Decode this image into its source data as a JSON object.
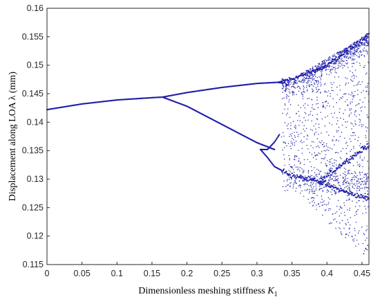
{
  "chart_data": {
    "type": "scatter",
    "title": "",
    "xlabel": "Dimensionless meshing stiffness",
    "xlabel_symbol": "K",
    "xlabel_subscript": "1",
    "ylabel": "Displacement along LOA λ (mm)",
    "xlim": [
      0,
      0.46
    ],
    "ylim": [
      0.115,
      0.16
    ],
    "x_ticks": [
      "0",
      "0.05",
      "0.1",
      "0.15",
      "0.2",
      "0.25",
      "0.3",
      "0.35",
      "0.4",
      "0.45"
    ],
    "y_ticks": [
      "0.115",
      "0.12",
      "0.125",
      "0.13",
      "0.135",
      "0.14",
      "0.145",
      "0.15",
      "0.155",
      "0.16"
    ],
    "grid": false,
    "legend": "none",
    "marker_color": "#1f1fa8",
    "series": [
      {
        "branches": [
          {
            "x": [
              0,
              0.05,
              0.1,
              0.15,
              0.165
            ],
            "y": [
              0.1422,
              0.1432,
              0.1439,
              0.1443,
              0.1444
            ]
          },
          {
            "x": [
              0.165,
              0.2,
              0.25,
              0.3,
              0.33
            ],
            "y": [
              0.1444,
              0.1452,
              0.1461,
              0.1468,
              0.147
            ]
          },
          {
            "x": [
              0.165,
              0.2,
              0.25,
              0.3,
              0.325
            ],
            "y": [
              0.1444,
              0.1428,
              0.1396,
              0.1364,
              0.1352
            ]
          },
          {
            "x": [
              0.33,
              0.35,
              0.4,
              0.46
            ],
            "y": [
              0.147,
              0.1476,
              0.1498,
              0.1555
            ]
          },
          {
            "x": [
              0.33,
              0.345
            ],
            "y": [
              0.147,
              0.1467
            ]
          },
          {
            "x": [
              0.305,
              0.315,
              0.325,
              0.332
            ],
            "y": [
              0.1352,
              0.1352,
              0.1365,
              0.1378
            ]
          },
          {
            "x": [
              0.305,
              0.315,
              0.325,
              0.35,
              0.39
            ],
            "y": [
              0.1352,
              0.1338,
              0.1322,
              0.1306,
              0.1295
            ]
          },
          {
            "x": [
              0.39,
              0.42,
              0.46
            ],
            "y": [
              0.1295,
              0.1325,
              0.136
            ]
          },
          {
            "x": [
              0.39,
              0.42,
              0.46
            ],
            "y": [
              0.1295,
              0.128,
              0.1265
            ]
          }
        ],
        "chaotic_region": {
          "x": [
            0.335,
            0.46
          ],
          "y": [
            0.116,
            0.156
          ]
        }
      }
    ]
  }
}
